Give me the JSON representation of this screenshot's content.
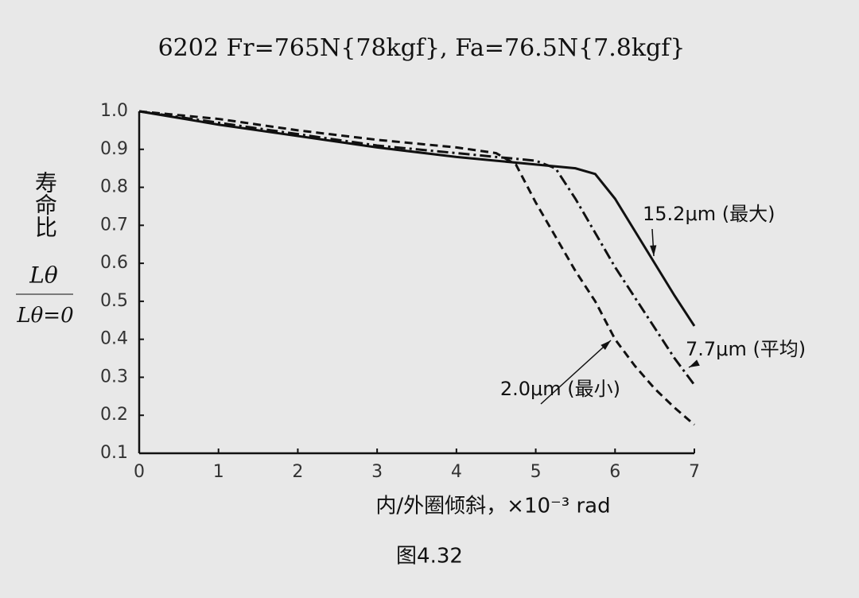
{
  "chart_data": {
    "type": "line",
    "title": "6202  Fr=765N{78kgf}, Fa=76.5N{7.8kgf}",
    "y_label": "寿命比",
    "y_label_numerator": "Lθ",
    "y_label_denominator": "Lθ=0",
    "x_label": "内/外圈倾斜，×10⁻³ rad",
    "caption": "图4.32",
    "x": [
      0,
      1,
      2,
      3,
      4,
      4.5,
      4.75,
      5,
      5.25,
      5.5,
      5.75,
      6,
      6.25,
      6.5,
      6.75,
      7
    ],
    "series": [
      {
        "name": "15.2μm (最大)",
        "color": "#111111",
        "dash": "solid",
        "values": [
          1.0,
          0.965,
          0.935,
          0.905,
          0.88,
          0.87,
          0.865,
          0.86,
          0.855,
          0.85,
          0.835,
          0.77,
          0.685,
          0.6,
          0.515,
          0.435
        ]
      },
      {
        "name": "7.7μm (平均)",
        "color": "#111111",
        "dash": "dashdot",
        "values": [
          1.0,
          0.97,
          0.94,
          0.91,
          0.89,
          0.88,
          0.875,
          0.87,
          0.85,
          0.77,
          0.68,
          0.59,
          0.51,
          0.43,
          0.35,
          0.28
        ]
      },
      {
        "name": "2.0μm (最小)",
        "color": "#111111",
        "dash": "dash",
        "values": [
          1.0,
          0.98,
          0.95,
          0.925,
          0.905,
          0.89,
          0.86,
          0.76,
          0.67,
          0.58,
          0.5,
          0.4,
          0.33,
          0.27,
          0.22,
          0.175
        ]
      }
    ],
    "xlim": [
      0,
      7
    ],
    "xticks": [
      0,
      1,
      2,
      3,
      4,
      5,
      6,
      7
    ],
    "ylim": [
      0.1,
      1
    ],
    "yticks": [
      0.1,
      0.2,
      0.3,
      0.4,
      0.5,
      0.6,
      0.7,
      0.8,
      0.9,
      {
        "value": 1,
        "label": "1.0"
      }
    ],
    "grid": false
  }
}
